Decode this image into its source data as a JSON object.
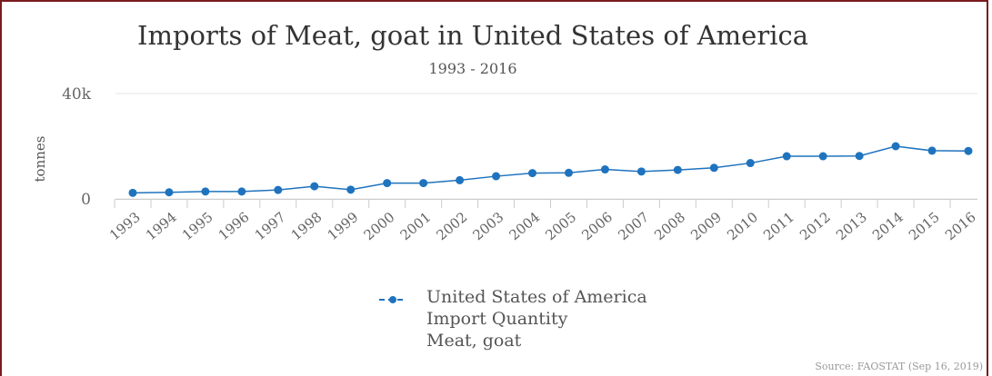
{
  "colors": {
    "border": "#7a1a1f",
    "series": "#1f73be",
    "grid": "#e6e6e6",
    "text": "#555555"
  },
  "chart_data": {
    "type": "line",
    "title": "Imports of Meat, goat in United States of America",
    "subtitle": "1993 - 2016",
    "ylabel": "tonnes",
    "xlabel": "",
    "ylim": [
      0,
      40000
    ],
    "yticks": [
      0,
      40000
    ],
    "ytick_labels": [
      "0",
      "40k"
    ],
    "categories": [
      "1993",
      "1994",
      "1995",
      "1996",
      "1997",
      "1998",
      "1999",
      "2000",
      "2001",
      "2002",
      "2003",
      "2004",
      "2005",
      "2006",
      "2007",
      "2008",
      "2009",
      "2010",
      "2011",
      "2012",
      "2013",
      "2014",
      "2015",
      "2016"
    ],
    "series": [
      {
        "name": "United States of America",
        "values": [
          2300,
          2500,
          2800,
          2800,
          3400,
          4800,
          3500,
          6000,
          6000,
          7100,
          8600,
          9800,
          9900,
          11200,
          10400,
          11000,
          11800,
          13600,
          16200,
          16200,
          16300,
          20000,
          18300,
          18200
        ]
      }
    ],
    "grid": true,
    "legend_position": "bottom-center"
  },
  "legend": {
    "lines": [
      "United States of America",
      "Import Quantity",
      "Meat, goat"
    ]
  },
  "source": "Source: FAOSTAT (Sep 16, 2019)"
}
